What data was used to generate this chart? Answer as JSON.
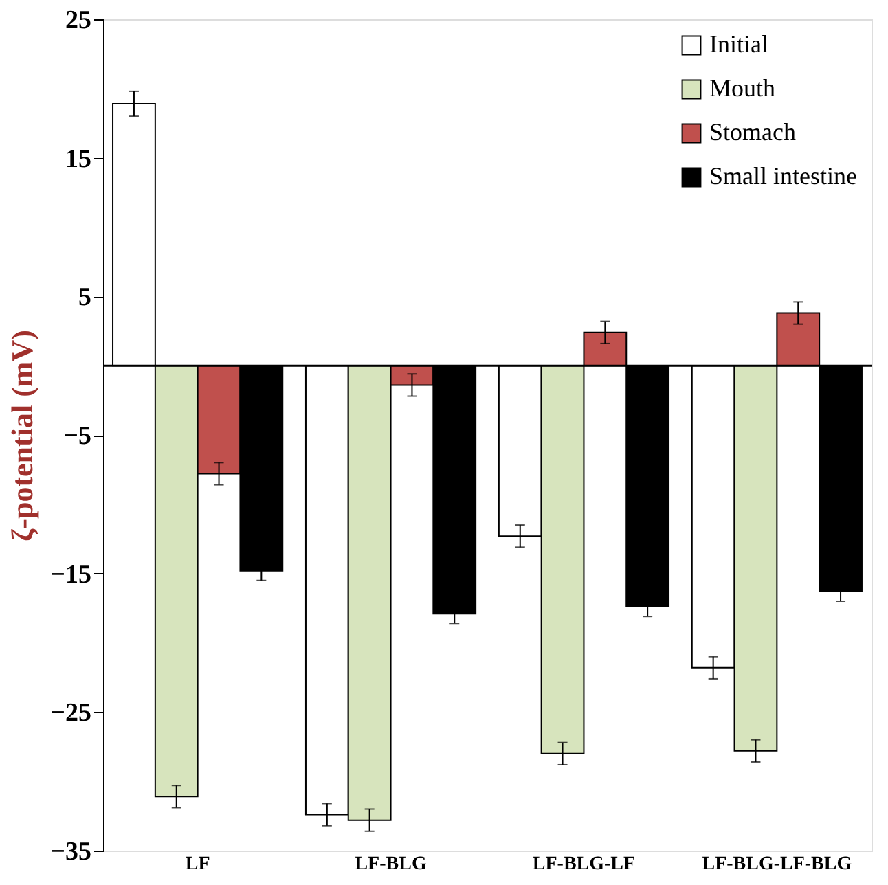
{
  "chart_data": {
    "type": "bar",
    "ylabel": "ζ-potential (mV)",
    "categories": [
      "LF",
      "LF-BLG",
      "LF-BLG-LF",
      "LF-BLG-LF-BLG"
    ],
    "series": [
      {
        "name": "Initial",
        "color": "#ffffff",
        "values": [
          18.9,
          -32.4,
          -12.3,
          -21.8
        ],
        "errors": [
          0.9,
          0.8,
          0.8,
          0.8
        ]
      },
      {
        "name": "Mouth",
        "color": "#d7e4bd",
        "values": [
          -31.1,
          -32.8,
          -28.0,
          -27.8
        ],
        "errors": [
          0.8,
          0.8,
          0.8,
          0.8
        ]
      },
      {
        "name": "Stomach",
        "color": "#c0504d",
        "values": [
          -7.8,
          -1.4,
          2.4,
          3.8
        ],
        "errors": [
          0.8,
          0.8,
          0.8,
          0.8
        ]
      },
      {
        "name": "Small intestine",
        "color": "#000000",
        "values": [
          -14.8,
          -17.9,
          -17.4,
          -16.3
        ],
        "errors": [
          0.7,
          0.7,
          0.7,
          0.7
        ]
      }
    ],
    "ylim": [
      -35,
      25
    ],
    "yticks": [
      -35,
      -25,
      -15,
      -5,
      5,
      15,
      25
    ],
    "ref_lines": [
      {
        "axis": "y",
        "value": 0,
        "color": "#000000"
      }
    ],
    "grid": false,
    "legend": "top right"
  }
}
